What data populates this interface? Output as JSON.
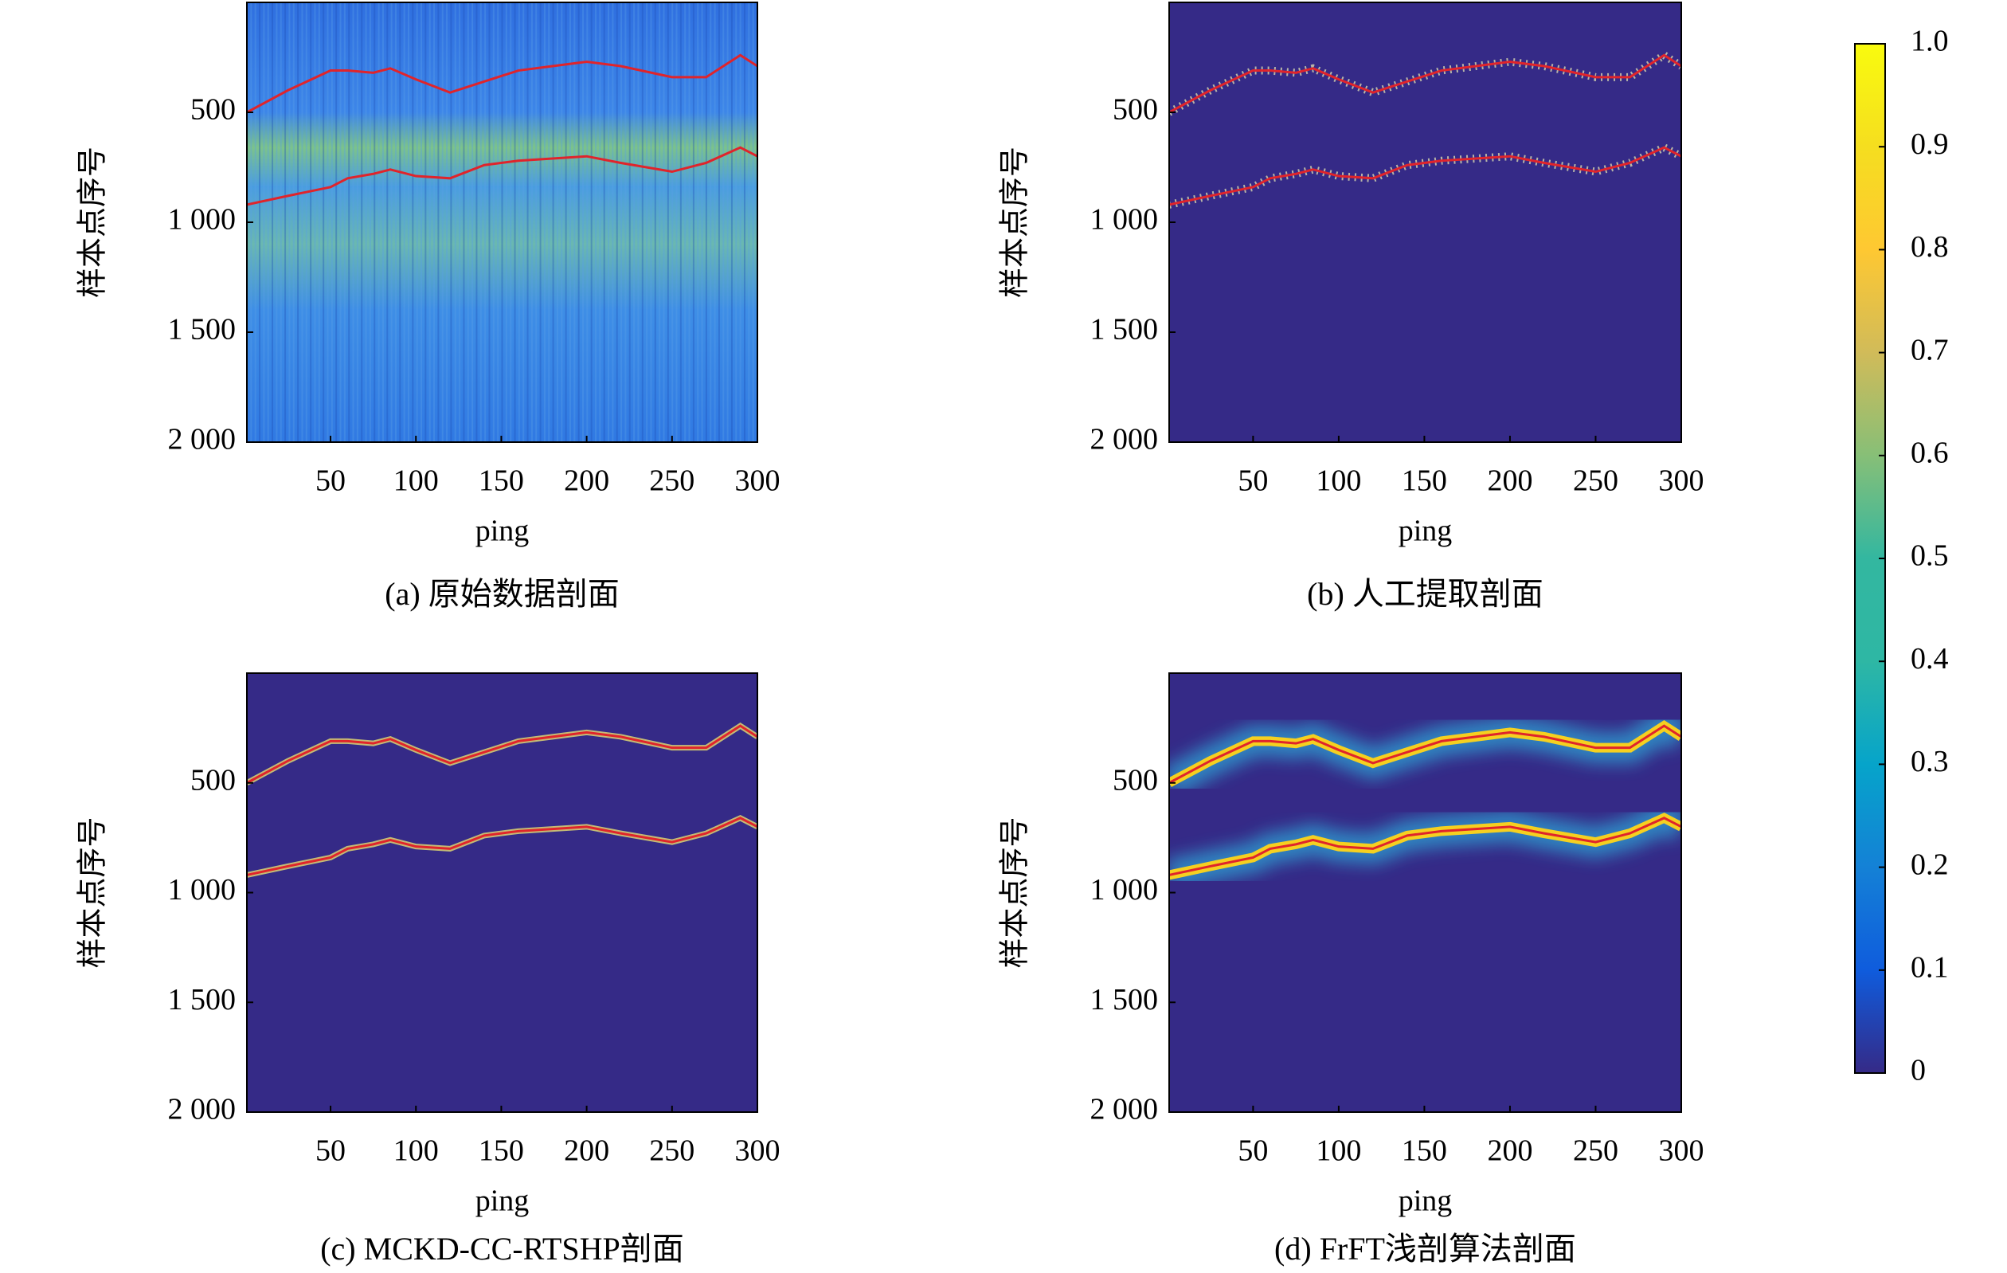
{
  "chart_data": [
    {
      "type": "heatmap-line",
      "title": "(a) 原始数据剖面",
      "xlabel": "ping",
      "ylabel": "样本点序号",
      "background": "noisy",
      "xlim": [
        1,
        300
      ],
      "xticks": [
        50,
        100,
        150,
        200,
        250,
        300
      ],
      "ylim": [
        2000,
        0
      ],
      "yticks": [
        500,
        {
          "value": 1000,
          "label": "1 000"
        },
        {
          "value": 1500,
          "label": "1 500"
        },
        {
          "value": 2000,
          "label": "2 000"
        }
      ],
      "x": [
        1,
        25,
        50,
        60,
        75,
        85,
        100,
        120,
        140,
        160,
        180,
        200,
        220,
        250,
        270,
        290,
        300
      ],
      "series": [
        {
          "color": "#e0242b",
          "values": [
            500,
            400,
            310,
            310,
            320,
            300,
            350,
            410,
            360,
            310,
            290,
            270,
            290,
            340,
            340,
            240,
            290
          ]
        },
        {
          "color": "#e0242b",
          "values": [
            920,
            880,
            840,
            800,
            780,
            760,
            790,
            800,
            740,
            720,
            710,
            700,
            730,
            770,
            730,
            660,
            700
          ]
        }
      ]
    },
    {
      "type": "heatmap-line",
      "title": "(b) 人工提取剖面",
      "xlabel": "ping",
      "ylabel": "样本点序号",
      "background": "flat",
      "xlim": [
        1,
        300
      ],
      "xticks": [
        50,
        100,
        150,
        200,
        250,
        300
      ],
      "ylim": [
        2000,
        0
      ],
      "yticks": [
        500,
        {
          "value": 1000,
          "label": "1 000"
        },
        {
          "value": 1500,
          "label": "1 500"
        },
        {
          "value": 2000,
          "label": "2 000"
        }
      ],
      "x": [
        1,
        25,
        50,
        60,
        75,
        85,
        100,
        120,
        140,
        160,
        180,
        200,
        220,
        250,
        270,
        290,
        300
      ],
      "series": [
        {
          "color": "#e0242b",
          "values": [
            500,
            400,
            310,
            310,
            320,
            300,
            350,
            410,
            360,
            310,
            290,
            270,
            290,
            340,
            340,
            240,
            290
          ]
        },
        {
          "color": "#e0242b",
          "values": [
            920,
            880,
            840,
            800,
            780,
            760,
            790,
            800,
            740,
            720,
            710,
            700,
            730,
            770,
            730,
            660,
            700
          ]
        }
      ]
    },
    {
      "type": "heatmap-line",
      "title": "(c) MCKD-CC-RTSHP剖面",
      "xlabel": "ping",
      "ylabel": "样本点序号",
      "background": "flat",
      "xlim": [
        1,
        300
      ],
      "xticks": [
        50,
        100,
        150,
        200,
        250,
        300
      ],
      "ylim": [
        2000,
        0
      ],
      "yticks": [
        500,
        {
          "value": 1000,
          "label": "1 000"
        },
        {
          "value": 1500,
          "label": "1 500"
        },
        {
          "value": 2000,
          "label": "2 000"
        }
      ],
      "x": [
        1,
        25,
        50,
        60,
        75,
        85,
        100,
        120,
        140,
        160,
        180,
        200,
        220,
        250,
        270,
        290,
        300
      ],
      "series": [
        {
          "color": "#e0242b",
          "values": [
            500,
            400,
            310,
            310,
            320,
            300,
            350,
            410,
            360,
            310,
            290,
            270,
            290,
            340,
            340,
            240,
            290
          ]
        },
        {
          "color": "#e0242b",
          "values": [
            920,
            880,
            840,
            800,
            780,
            760,
            790,
            800,
            740,
            720,
            710,
            700,
            730,
            770,
            730,
            660,
            700
          ]
        }
      ]
    },
    {
      "type": "heatmap-line",
      "title": "(d) FrFT浅剖算法剖面",
      "xlabel": "ping",
      "ylabel": "样本点序号",
      "background": "glow",
      "xlim": [
        1,
        300
      ],
      "xticks": [
        50,
        100,
        150,
        200,
        250,
        300
      ],
      "ylim": [
        2000,
        0
      ],
      "yticks": [
        500,
        {
          "value": 1000,
          "label": "1 000"
        },
        {
          "value": 1500,
          "label": "1 500"
        },
        {
          "value": 2000,
          "label": "2 000"
        }
      ],
      "x": [
        1,
        25,
        50,
        60,
        75,
        85,
        100,
        120,
        140,
        160,
        180,
        200,
        220,
        250,
        270,
        290,
        300
      ],
      "series": [
        {
          "color": "#e0242b",
          "values": [
            500,
            400,
            310,
            310,
            320,
            300,
            350,
            410,
            360,
            310,
            290,
            270,
            290,
            340,
            340,
            240,
            290
          ]
        },
        {
          "color": "#e0242b",
          "values": [
            920,
            880,
            840,
            800,
            780,
            760,
            790,
            800,
            740,
            720,
            710,
            700,
            730,
            770,
            730,
            660,
            700
          ]
        }
      ]
    },
    {
      "type": "colorbar",
      "ylim": [
        0,
        1
      ],
      "yticks": [
        0,
        0.1,
        0.2,
        0.3,
        0.4,
        0.5,
        0.6,
        0.7,
        0.8,
        0.9,
        {
          "value": 1,
          "label": "1.0"
        }
      ]
    }
  ]
}
